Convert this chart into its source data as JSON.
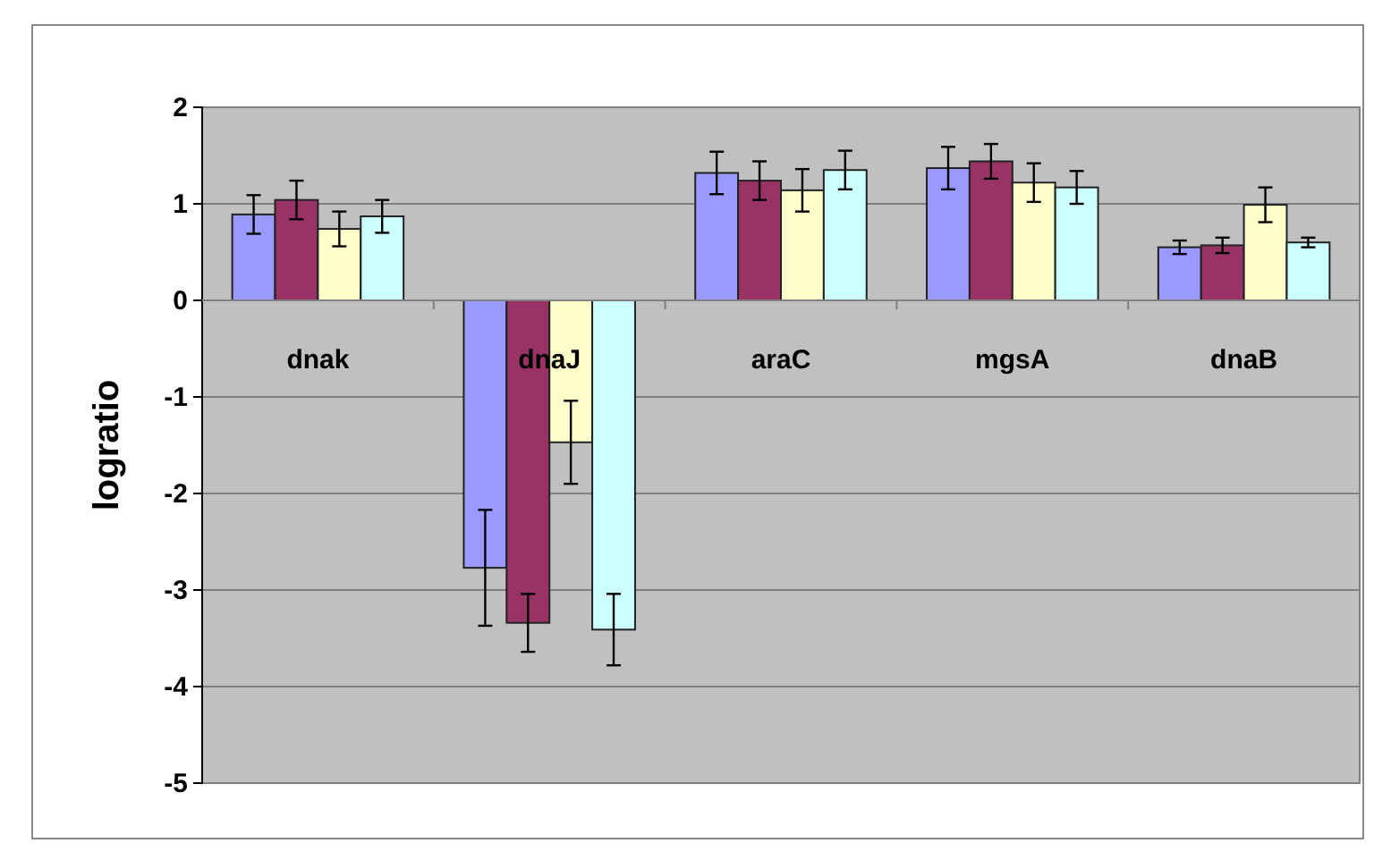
{
  "chart_data": {
    "type": "bar",
    "ylabel": "logratio",
    "categories": [
      "dnak",
      "dnaJ",
      "araC",
      "mgsA",
      "dnaB"
    ],
    "series": [
      {
        "color": "#9999ff",
        "values": [
          0.89,
          -2.77,
          1.32,
          1.37,
          0.55
        ],
        "errors": [
          0.2,
          0.6,
          0.22,
          0.22,
          0.07
        ]
      },
      {
        "color": "#993366",
        "values": [
          1.04,
          -3.34,
          1.24,
          1.44,
          0.57
        ],
        "errors": [
          0.2,
          0.3,
          0.2,
          0.18,
          0.08
        ]
      },
      {
        "color": "#ffffcc",
        "values": [
          0.74,
          -1.47,
          1.14,
          1.22,
          0.99
        ],
        "errors": [
          0.18,
          0.43,
          0.22,
          0.2,
          0.18
        ]
      },
      {
        "color": "#ccffff",
        "values": [
          0.87,
          -3.41,
          1.35,
          1.17,
          0.6
        ],
        "errors": [
          0.17,
          0.37,
          0.2,
          0.17,
          0.05
        ]
      }
    ],
    "ylim": [
      -5,
      2
    ],
    "yticks": [
      -5,
      -4,
      -3,
      -2,
      -1,
      0,
      1,
      2
    ],
    "grid": "y"
  }
}
